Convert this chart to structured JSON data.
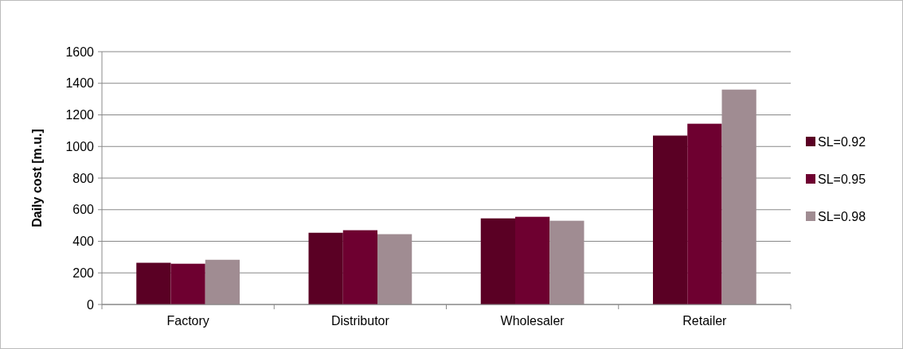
{
  "chart_data": {
    "type": "bar",
    "ylabel": "Daily cost [m.u.]",
    "categories": [
      "Factory",
      "Distributor",
      "Wholesaler",
      "Retailer"
    ],
    "series": [
      {
        "name": "SL=0.92",
        "color": "#5a0024",
        "values": [
          264,
          454,
          545,
          1069
        ]
      },
      {
        "name": "SL=0.95",
        "color": "#6e0030",
        "values": [
          258,
          470,
          555,
          1144
        ]
      },
      {
        "name": "SL=0.98",
        "color": "#a08c92",
        "values": [
          283,
          445,
          530,
          1360
        ]
      }
    ],
    "ylim": [
      0,
      1600
    ],
    "yticks": [
      0,
      200,
      400,
      600,
      800,
      1000,
      1200,
      1400,
      1600
    ],
    "grid": "y",
    "legend": "right"
  }
}
